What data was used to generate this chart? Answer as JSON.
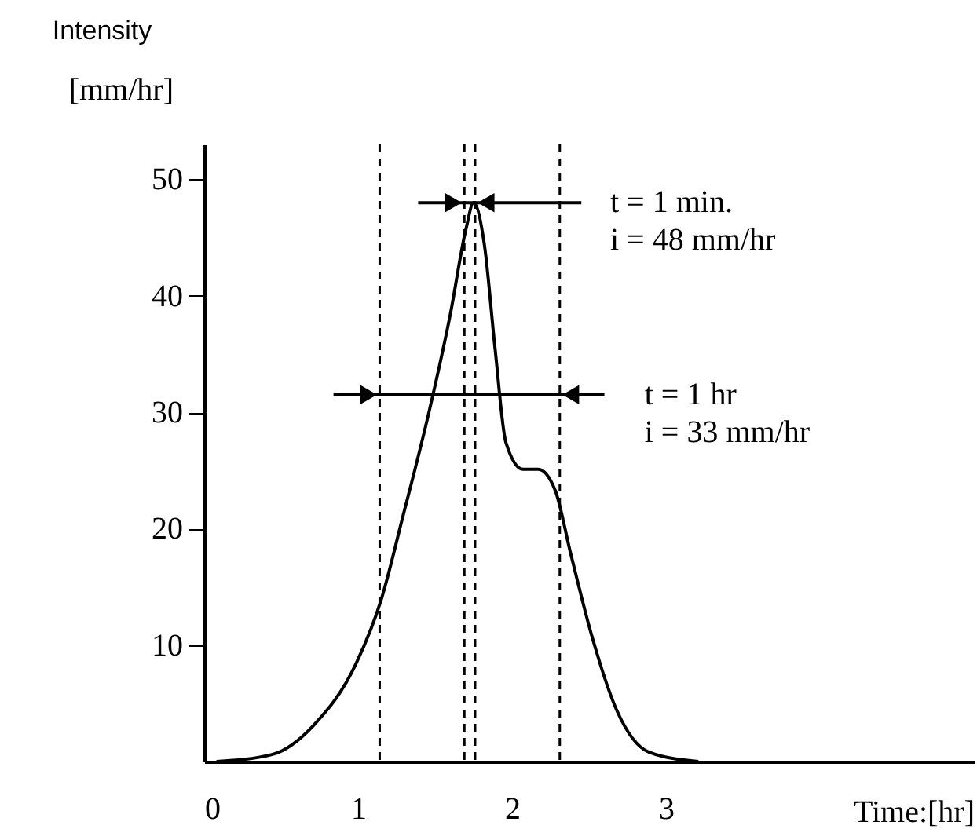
{
  "chart_data": {
    "type": "line",
    "title": "Intensity",
    "ylabel": "[mm/hr]",
    "xlabel": "Time:[hr]",
    "x": [
      0.08,
      0.44,
      0.71,
      0.99,
      1.15,
      1.29,
      1.46,
      1.6,
      1.7,
      1.75,
      1.82,
      1.89,
      1.96,
      2.07,
      2.17,
      2.28,
      2.38,
      2.52,
      2.68,
      2.89,
      3.21
    ],
    "series": [
      {
        "color": "#000000",
        "values": [
          0,
          0.6,
          3.1,
          8.5,
          13.9,
          21,
          30,
          38.5,
          45.7,
          48,
          44.4,
          35.4,
          27.4,
          25.1,
          25.1,
          23.3,
          17.9,
          10.7,
          4.4,
          0.8,
          0
        ]
      }
    ],
    "xlim": [
      0,
      5
    ],
    "xticks": [
      0,
      1,
      2,
      3
    ],
    "ylim": [
      0,
      53
    ],
    "yticks": [
      10,
      20,
      30,
      40,
      50
    ],
    "ref_lines": [
      {
        "axis": "x",
        "value": 1.14,
        "line_style": "dashed"
      },
      {
        "axis": "x",
        "value": 1.69,
        "line_style": "dashed"
      },
      {
        "axis": "x",
        "value": 1.76,
        "line_style": "dashed"
      },
      {
        "axis": "x",
        "value": 2.31,
        "line_style": "dashed"
      }
    ],
    "annotations": [
      "t = 1 min.\ni = 48 mm/hr",
      {
        "text": "t = 1  hr\ni = 33 mm/hr",
        "x": 2.31,
        "y": 31.5
      }
    ],
    "grid": false,
    "marker": "none",
    "line_style": "solid"
  }
}
